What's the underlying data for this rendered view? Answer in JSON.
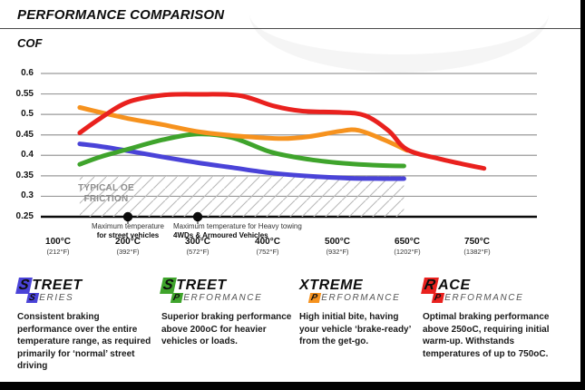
{
  "chart_data": {
    "type": "line",
    "title": "PERFORMANCE COMPARISON",
    "ylabel": "COF",
    "ylim": [
      0.25,
      0.6
    ],
    "yticks": [
      0.6,
      0.55,
      0.5,
      0.45,
      0.4,
      0.35,
      0.3,
      0.25
    ],
    "x_tick_temps": [
      100,
      200,
      300,
      400,
      500,
      650,
      750
    ],
    "xticks": [
      {
        "label": "100°C",
        "sub": "(212°F)"
      },
      {
        "label": "200°C",
        "sub": "(392°F)"
      },
      {
        "label": "300°C",
        "sub": "(572°F)"
      },
      {
        "label": "400°C",
        "sub": "(752°F)"
      },
      {
        "label": "500°C",
        "sub": "(932°F)"
      },
      {
        "label": "650°C",
        "sub": "(1202°F)"
      },
      {
        "label": "750°C",
        "sub": "(1382°F)"
      }
    ],
    "grid": true,
    "legend_position": "bottom",
    "series": [
      {
        "name": "Street Series",
        "color": "#4a43d8",
        "points": [
          [
            131,
            0.428
          ],
          [
            160,
            0.422
          ],
          [
            200,
            0.411
          ],
          [
            250,
            0.396
          ],
          [
            300,
            0.382
          ],
          [
            350,
            0.37
          ],
          [
            405,
            0.357
          ],
          [
            470,
            0.348
          ],
          [
            530,
            0.344
          ],
          [
            600,
            0.343
          ],
          [
            643,
            0.343
          ]
        ]
      },
      {
        "name": "Street Performance",
        "color": "#3fa42c",
        "points": [
          [
            131,
            0.378
          ],
          [
            160,
            0.396
          ],
          [
            200,
            0.415
          ],
          [
            250,
            0.438
          ],
          [
            300,
            0.452
          ],
          [
            350,
            0.443
          ],
          [
            405,
            0.408
          ],
          [
            460,
            0.39
          ],
          [
            520,
            0.38
          ],
          [
            580,
            0.376
          ],
          [
            643,
            0.374
          ]
        ]
      },
      {
        "name": "Xtreme Performance",
        "color": "#f6921e",
        "points": [
          [
            131,
            0.517
          ],
          [
            200,
            0.49
          ],
          [
            250,
            0.475
          ],
          [
            300,
            0.458
          ],
          [
            360,
            0.447
          ],
          [
            420,
            0.441
          ],
          [
            460,
            0.446
          ],
          [
            505,
            0.459
          ],
          [
            545,
            0.461
          ],
          [
            600,
            0.438
          ],
          [
            650,
            0.412
          ]
        ]
      },
      {
        "name": "Race Performance",
        "color": "#e9211e",
        "points": [
          [
            131,
            0.455
          ],
          [
            160,
            0.49
          ],
          [
            200,
            0.53
          ],
          [
            250,
            0.547
          ],
          [
            300,
            0.549
          ],
          [
            360,
            0.546
          ],
          [
            410,
            0.52
          ],
          [
            450,
            0.508
          ],
          [
            505,
            0.505
          ],
          [
            560,
            0.497
          ],
          [
            610,
            0.46
          ],
          [
            650,
            0.414
          ],
          [
            700,
            0.39
          ],
          [
            760,
            0.368
          ]
        ]
      }
    ],
    "oe_region": {
      "label_line1": "TYPICAL OE",
      "label_line2": "FRICTION",
      "v_top": 0.35,
      "v_bottom": 0.25,
      "t_start": 131,
      "t_end": 643
    },
    "annotations": [
      {
        "temp": 200,
        "line1": "Maximum temperature",
        "line2": "for street vehicles",
        "align": "center"
      },
      {
        "temp": 300,
        "line1": "Maximum temperature for Heavy towing",
        "line2": "4WDs & Armoured Vehicles",
        "align": "left"
      }
    ]
  },
  "legend": [
    {
      "word1": "STREET",
      "word2": "SERIES",
      "color": "#4a43d8",
      "box1": true,
      "desc": "Consistent braking performance over the entire temperature range, as required primarily for ‘normal’ street driving"
    },
    {
      "word1": "STREET",
      "word2": "PERFORMANCE",
      "color": "#3fa42c",
      "box1": true,
      "desc": "Superior braking performance above 200oC for heavier vehicles or loads."
    },
    {
      "word1": "XTREME",
      "word2": "PERFORMANCE",
      "color": "#f6921e",
      "box1": false,
      "desc": "High initial bite, having your vehicle ‘brake-ready’ from the get-go."
    },
    {
      "word1": "RACE",
      "word2": "PERFORMANCE",
      "color": "#e9211e",
      "box1": true,
      "desc": "Optimal braking performance above 250oC, requiring initial warm-up. Withstands temperatures of up to 750oC."
    }
  ]
}
